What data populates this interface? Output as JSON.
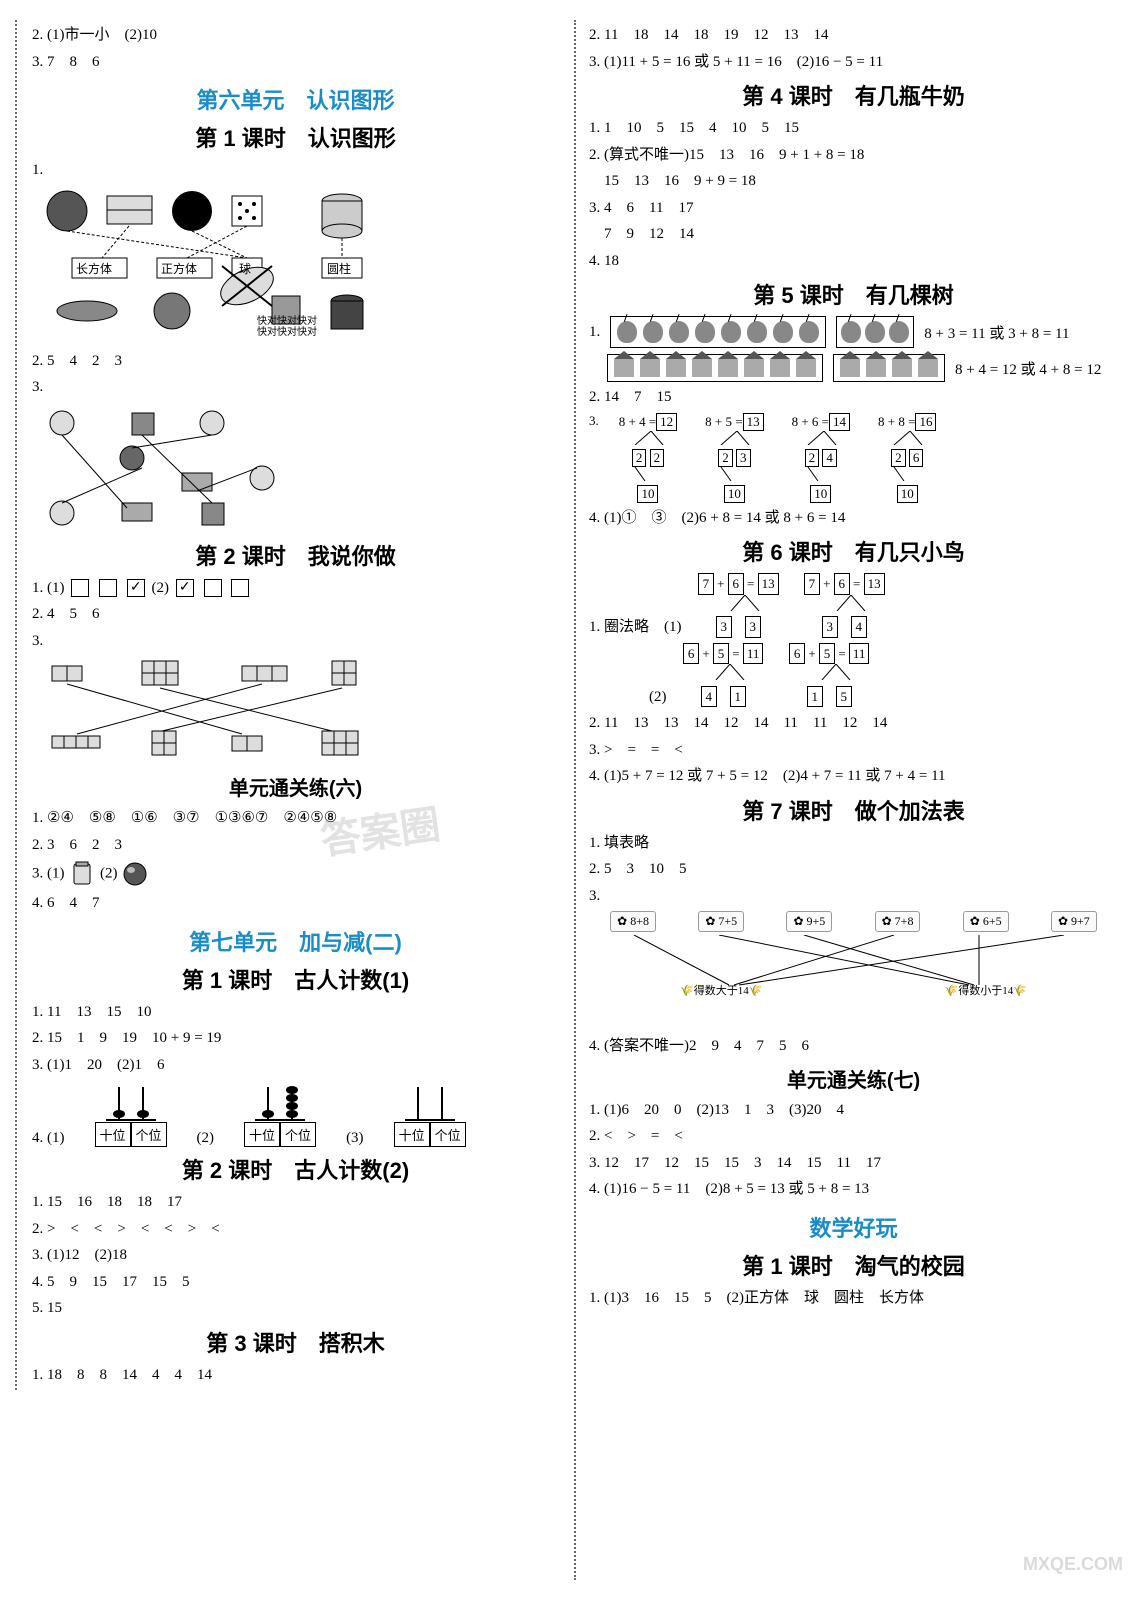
{
  "colors": {
    "accent": "#1a8cc8",
    "text": "#000000",
    "bg": "#ffffff"
  },
  "left": {
    "pre": {
      "l2": "2. (1)市一小　(2)10",
      "l3": "3. 7　8　6"
    },
    "unit6": {
      "title": "第六单元　认识图形",
      "lesson1": {
        "title": "第 1 课时　认识图形",
        "q1_label": "1.",
        "shape_labels": [
          "长方体",
          "正方体",
          "球",
          "圆柱"
        ],
        "img_caption": "快对快对快对\n快对快对快对",
        "q2": "2. 5　4　2　3",
        "q3_label": "3."
      },
      "lesson2": {
        "title": "第 2 课时　我说你做",
        "q1": "1. (1)",
        "q1_checks_a": [
          "",
          "",
          "✓"
        ],
        "q1_mid": "(2)",
        "q1_checks_b": [
          "✓",
          "",
          ""
        ],
        "q2": "2. 4　5　6",
        "q3_label": "3."
      },
      "tongguan": {
        "title": "单元通关练(六)",
        "q1": "1. ②④　⑤⑧　①⑥　③⑦　①③⑥⑦　②④⑤⑧",
        "q2": "2. 3　6　2　3",
        "q3": "3. (1)",
        "q3b": "(2)",
        "q4": "4. 6　4　7"
      }
    },
    "unit7": {
      "title": "第七单元　加与减(二)",
      "lesson1": {
        "title": "第 1 课时　古人计数(1)",
        "q1": "1. 11　13　15　10",
        "q2": "2. 15　1　9　19　10 + 9 = 19",
        "q3": "3. (1)1　20　(2)1　6",
        "q4_label": "4. (1)",
        "q4_mid": "(2)",
        "q4_end": "(3)",
        "place_labels": [
          "十位",
          "个位"
        ]
      },
      "lesson2": {
        "title": "第 2 课时　古人计数(2)",
        "q1": "1. 15　16　18　18　17",
        "q2": "2. >　<　<　>　<　<　>　<",
        "q3": "3. (1)12　(2)18",
        "q4": "4. 5　9　15　17　15　5",
        "q5": "5. 15"
      },
      "lesson3": {
        "title": "第 3 课时　搭积木",
        "q1": "1. 18　8　8　14　4　4　14"
      }
    }
  },
  "right": {
    "pre": {
      "q2": "2. 11　18　14　18　19　12　13　14",
      "q3": "3. (1)11 + 5 = 16 或 5 + 11 = 16　(2)16 − 5 = 11"
    },
    "lesson4": {
      "title": "第 4 课时　有几瓶牛奶",
      "q1": "1. 1　10　5　15　4　10　5　15",
      "q2a": "2. (算式不唯一)15　13　16　9 + 1 + 8 = 18",
      "q2b": "　15　13　16　9 + 9 = 18",
      "q3a": "3. 4　6　11　17",
      "q3b": "　7　9　12　14",
      "q4": "4. 18"
    },
    "lesson5": {
      "title": "第 5 课时　有几棵树",
      "q1_label": "1.",
      "q1_eq1": "8 + 3 = 11 或 3 + 8 = 11",
      "q1_eq2": "8 + 4 = 12 或 4 + 8 = 12",
      "q2": "2. 14　7　15",
      "q3_label": "3.",
      "q3_decomps": [
        {
          "top": "8 + 4 =",
          "res": "12",
          "b1": "2",
          "b2": "2",
          "bot": "10"
        },
        {
          "top": "8 + 5 =",
          "res": "13",
          "b1": "2",
          "b2": "3",
          "bot": "10"
        },
        {
          "top": "8 + 6 =",
          "res": "14",
          "b1": "2",
          "b2": "4",
          "bot": "10"
        },
        {
          "top": "8 + 8 =",
          "res": "16",
          "b1": "2",
          "b2": "6",
          "bot": "10"
        }
      ],
      "q4": "4. (1)①　③　(2)6 + 8 = 14 或 8 + 6 = 14"
    },
    "lesson6": {
      "title": "第 6 课时　有几只小鸟",
      "q1_label": "1. 圈法略　(1)",
      "q1_trees_a": [
        {
          "top": [
            "7",
            "+",
            "6",
            "=",
            "13"
          ],
          "bot": [
            "3",
            "3"
          ]
        },
        {
          "top": [
            "7",
            "+",
            "6",
            "=",
            "13"
          ],
          "bot": [
            "3",
            "4"
          ]
        }
      ],
      "q1_mid": "(2)",
      "q1_trees_b": [
        {
          "top": [
            "6",
            "+",
            "5",
            "=",
            "11"
          ],
          "bot": [
            "4",
            "1"
          ]
        },
        {
          "top": [
            "6",
            "+",
            "5",
            "=",
            "11"
          ],
          "bot": [
            "1",
            "5"
          ]
        }
      ],
      "q2": "2. 11　13　13　14　12　14　11　11　12　14",
      "q3": "3. >　=　=　<",
      "q4": "4. (1)5 + 7 = 12 或 7 + 5 = 12　(2)4 + 7 = 11 或 7 + 4 = 11"
    },
    "lesson7": {
      "title": "第 7 课时　做个加法表",
      "q1": "1. 填表略",
      "q2": "2. 5　3　10　5",
      "q3_label": "3.",
      "q3_cards": [
        "8+8",
        "7+5",
        "9+5",
        "7+8",
        "6+5",
        "9+7"
      ],
      "q3_left": "得数大于14",
      "q3_right": "得数小于14",
      "q4": "4. (答案不唯一)2　9　4　7　5　6"
    },
    "tongguan7": {
      "title": "单元通关练(七)",
      "q1": "1. (1)6　20　0　(2)13　1　3　(3)20　4",
      "q2": "2. <　>　=　<",
      "q3": "3. 12　17　12　15　15　3　14　15　11　17",
      "q4": "4. (1)16 − 5 = 11　(2)8 + 5 = 13 或 5 + 8 = 13"
    },
    "fun": {
      "title": "数学好玩",
      "lesson1_title": "第 1 课时　淘气的校园",
      "q1": "1. (1)3　16　15　5　(2)正方体　球　圆柱　长方体"
    }
  },
  "watermarks": {
    "main": "答案圈",
    "url": "MXQE.COM"
  }
}
